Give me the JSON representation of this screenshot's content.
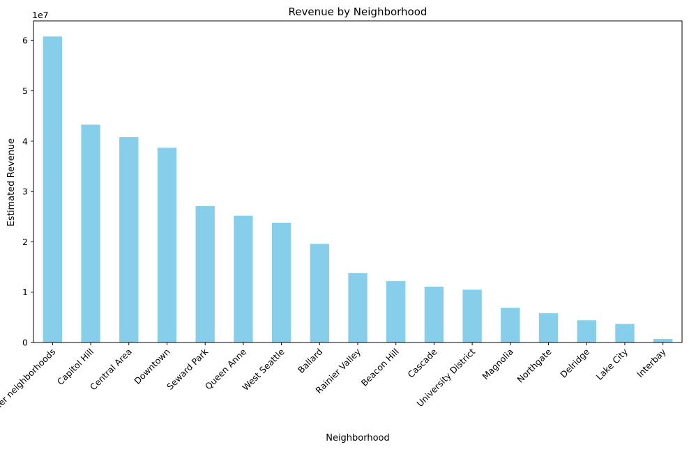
{
  "chart_data": {
    "type": "bar",
    "title": "Revenue by Neighborhood",
    "xlabel": "Neighborhood",
    "ylabel": "Estimated Revenue",
    "y_offset_label": "1e7",
    "categories": [
      "Other neighborhoods",
      "Capitol Hill",
      "Central Area",
      "Downtown",
      "Seward Park",
      "Queen Anne",
      "West Seattle",
      "Ballard",
      "Rainier Valley",
      "Beacon Hill",
      "Cascade",
      "University District",
      "Magnolia",
      "Northgate",
      "Delridge",
      "Lake City",
      "Interbay"
    ],
    "values": [
      60800000,
      43300000,
      40800000,
      38700000,
      27100000,
      25200000,
      23800000,
      19600000,
      13800000,
      12200000,
      11100000,
      10500000,
      6900000,
      5800000,
      4400000,
      3700000,
      700000
    ],
    "yticks": [
      0,
      1,
      2,
      3,
      4,
      5,
      6
    ],
    "ylim": [
      0,
      63900000
    ],
    "bar_color": "#87CEEB",
    "grid": false,
    "legend": "none"
  }
}
